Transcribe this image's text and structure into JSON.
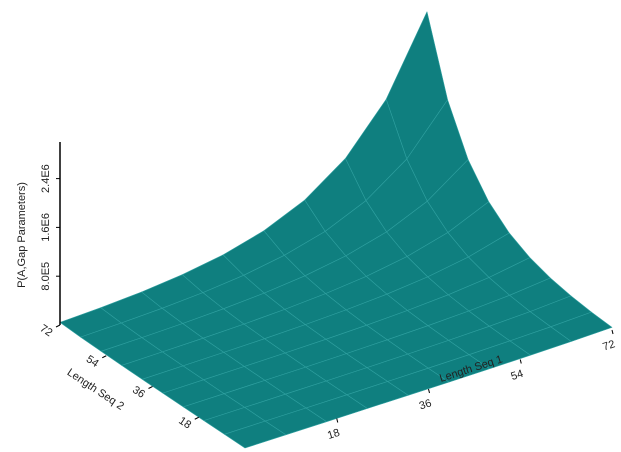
{
  "chart_data": {
    "type": "surface",
    "xlabel": "Length Seq 1",
    "ylabel": "Length Seq 2",
    "zlabel": "P(A,Gap Parameters)",
    "color": "#0f7f7f",
    "x": [
      0,
      8,
      16,
      24,
      32,
      40,
      48,
      56,
      64,
      72
    ],
    "y": [
      0,
      8,
      16,
      24,
      32,
      40,
      48,
      56,
      64,
      72
    ],
    "z": [
      [
        566,
        915,
        1477,
        2388,
        3860,
        6256,
        10087,
        16300,
        26345,
        42560
      ],
      [
        915,
        1479,
        2387,
        3860,
        6240,
        10114,
        16306,
        26350,
        42587,
        68800
      ],
      [
        1477,
        2387,
        3853,
        6229,
        10071,
        16323,
        26316,
        42528,
        68734,
        111040
      ],
      [
        2388,
        3860,
        6229,
        10071,
        16283,
        26389,
        42546,
        68756,
        111123,
        179520
      ],
      [
        3860,
        6240,
        10071,
        16282,
        26325,
        42665,
        68787,
        111162,
        179659,
        290240
      ],
      [
        6256,
        10114,
        16323,
        26389,
        42665,
        69149,
        111485,
        180163,
        291178,
        470400
      ],
      [
        10087,
        16306,
        26316,
        42546,
        68787,
        111485,
        179741,
        290467,
        469450,
        758400
      ],
      [
        16300,
        26350,
        42528,
        68756,
        111162,
        180163,
        290467,
        469405,
        758646,
        1225600
      ],
      [
        26345,
        42587,
        68734,
        111123,
        179659,
        291178,
        469450,
        758646,
        1226115,
        1980800
      ],
      [
        42560,
        68800,
        111040,
        179520,
        290240,
        470400,
        758400,
        1225600,
        1980800,
        3200000
      ]
    ],
    "xlim": [
      0,
      72
    ],
    "ylim": [
      0,
      72
    ],
    "zlim": [
      0,
      3000000
    ],
    "xticks": [
      18,
      36,
      54,
      72
    ],
    "yticks": [
      18,
      36,
      54,
      72
    ],
    "zticks": [
      {
        "value": 800000,
        "label": "8.0E5"
      },
      {
        "value": 1600000,
        "label": "1.6E6"
      },
      {
        "value": 2400000,
        "label": "2.4E6"
      }
    ]
  }
}
